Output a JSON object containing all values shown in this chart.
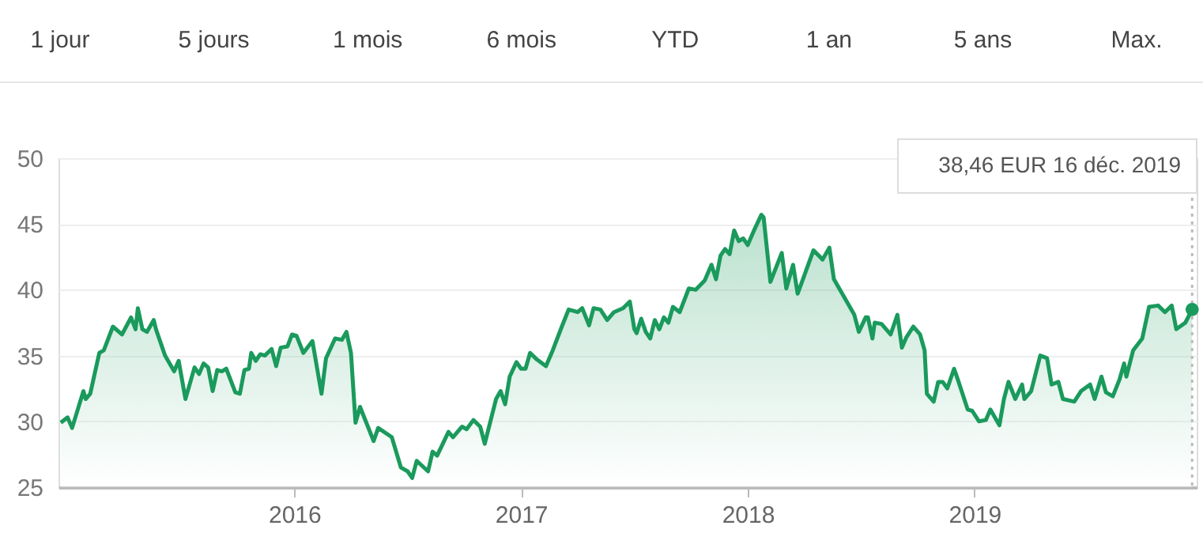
{
  "chart_data": {
    "type": "area",
    "x": [
      2014.97,
      2015.0,
      2015.02,
      2015.07,
      2015.08,
      2015.1,
      2015.14,
      2015.16,
      2015.2,
      2015.24,
      2015.28,
      2015.3,
      2015.31,
      2015.33,
      2015.35,
      2015.38,
      2015.39,
      2015.43,
      2015.47,
      2015.49,
      2015.52,
      2015.56,
      2015.58,
      2015.6,
      2015.62,
      2015.64,
      2015.66,
      2015.68,
      2015.7,
      2015.74,
      2015.76,
      2015.78,
      2015.8,
      2015.81,
      2015.83,
      2015.85,
      2015.87,
      2015.9,
      2015.92,
      2015.94,
      2015.97,
      2015.99,
      2016.01,
      2016.04,
      2016.08,
      2016.12,
      2016.14,
      2016.18,
      2016.21,
      2016.23,
      2016.25,
      2016.27,
      2016.29,
      2016.35,
      2016.37,
      2016.43,
      2016.47,
      2016.5,
      2016.52,
      2016.54,
      2016.59,
      2016.61,
      2016.63,
      2016.68,
      2016.7,
      2016.74,
      2016.76,
      2016.79,
      2016.82,
      2016.84,
      2016.89,
      2016.91,
      2016.93,
      2016.95,
      2016.98,
      2017.0,
      2017.02,
      2017.04,
      2017.07,
      2017.11,
      2017.14,
      2017.18,
      2017.21,
      2017.25,
      2017.27,
      2017.3,
      2017.32,
      2017.35,
      2017.38,
      2017.41,
      2017.45,
      2017.48,
      2017.5,
      2017.51,
      2017.53,
      2017.55,
      2017.57,
      2017.59,
      2017.61,
      2017.63,
      2017.65,
      2017.67,
      2017.7,
      2017.74,
      2017.77,
      2017.81,
      2017.84,
      2017.86,
      2017.88,
      2017.9,
      2017.92,
      2017.94,
      2017.96,
      2017.98,
      2018.0,
      2018.03,
      2018.06,
      2018.07,
      2018.1,
      2018.15,
      2018.17,
      2018.2,
      2018.22,
      2018.29,
      2018.33,
      2018.36,
      2018.38,
      2018.41,
      2018.47,
      2018.49,
      2018.52,
      2018.53,
      2018.55,
      2018.56,
      2018.59,
      2018.63,
      2018.66,
      2018.68,
      2018.7,
      2018.73,
      2018.76,
      2018.78,
      2018.79,
      2018.82,
      2018.84,
      2018.86,
      2018.88,
      2018.91,
      2018.93,
      2018.97,
      2018.99,
      2019.02,
      2019.05,
      2019.07,
      2019.11,
      2019.13,
      2019.15,
      2019.18,
      2019.21,
      2019.22,
      2019.25,
      2019.29,
      2019.32,
      2019.34,
      2019.37,
      2019.39,
      2019.44,
      2019.47,
      2019.51,
      2019.53,
      2019.56,
      2019.58,
      2019.61,
      2019.64,
      2019.66,
      2019.67,
      2019.7,
      2019.74,
      2019.77,
      2019.81,
      2019.84,
      2019.87,
      2019.89,
      2019.93,
      2019.96
    ],
    "series": [
      {
        "color": "#1a9a5c",
        "values": [
          29.9,
          30.3,
          29.5,
          32.3,
          31.7,
          32.1,
          35.2,
          35.4,
          37.2,
          36.6,
          37.9,
          37.0,
          38.6,
          37.0,
          36.8,
          37.7,
          37.0,
          35.0,
          33.8,
          34.6,
          31.7,
          34.1,
          33.6,
          34.4,
          34.1,
          32.3,
          33.9,
          33.8,
          34.0,
          32.2,
          32.1,
          33.9,
          34.0,
          35.2,
          34.6,
          35.1,
          35.0,
          35.5,
          34.2,
          35.6,
          35.7,
          36.6,
          36.5,
          35.2,
          36.1,
          32.1,
          34.8,
          36.3,
          36.2,
          36.8,
          35.2,
          29.9,
          31.1,
          28.5,
          29.5,
          28.8,
          26.5,
          26.2,
          25.7,
          27.0,
          26.2,
          27.7,
          27.4,
          29.2,
          28.8,
          29.6,
          29.4,
          30.1,
          29.6,
          28.3,
          31.7,
          32.3,
          31.3,
          33.4,
          34.5,
          34.0,
          34.0,
          35.2,
          34.7,
          34.2,
          35.4,
          37.2,
          38.5,
          38.3,
          38.6,
          37.3,
          38.6,
          38.5,
          37.7,
          38.3,
          38.6,
          39.1,
          37.0,
          36.7,
          37.8,
          36.8,
          36.3,
          37.7,
          37.0,
          37.9,
          37.5,
          38.7,
          38.3,
          40.1,
          40.0,
          40.7,
          41.9,
          40.8,
          42.6,
          43.1,
          42.7,
          44.5,
          43.7,
          43.9,
          43.4,
          44.6,
          45.7,
          45.5,
          40.6,
          42.8,
          40.1,
          41.9,
          39.7,
          43.0,
          42.3,
          43.2,
          40.8,
          39.9,
          38.1,
          36.8,
          37.9,
          37.9,
          36.3,
          37.5,
          37.4,
          36.6,
          38.1,
          35.6,
          36.4,
          37.2,
          36.6,
          35.4,
          32.1,
          31.5,
          33.0,
          33.0,
          32.5,
          34.0,
          33.0,
          30.9,
          30.8,
          30.0,
          30.1,
          30.9,
          29.7,
          31.7,
          33.0,
          31.7,
          32.8,
          31.7,
          32.3,
          35.0,
          34.8,
          32.8,
          33.0,
          31.7,
          31.5,
          32.3,
          32.8,
          31.7,
          33.4,
          32.2,
          31.9,
          33.2,
          34.4,
          33.4,
          35.4,
          36.3,
          38.7,
          38.8,
          38.3,
          38.8,
          37.0,
          37.5,
          38.5
        ]
      }
    ],
    "xlim": [
      2014.96,
      2019.98
    ],
    "xticks": [
      2016,
      2017,
      2018,
      2019
    ],
    "ylim": [
      25,
      50
    ],
    "yticks": [
      25,
      30,
      35,
      40,
      45,
      50
    ],
    "grid": "y",
    "marker": "none",
    "line_style": "solid",
    "ref_lines": [
      {
        "axis": "x",
        "value": 2019.96,
        "line_style": "dotted",
        "color": "#bbbbbb"
      }
    ],
    "annotations": [
      "1 jour",
      "5 jours",
      "1 mois",
      "6 mois",
      "YTD",
      "1 an",
      "5 ans",
      "Max.",
      "38,46 EUR  16 déc. 2019"
    ]
  }
}
